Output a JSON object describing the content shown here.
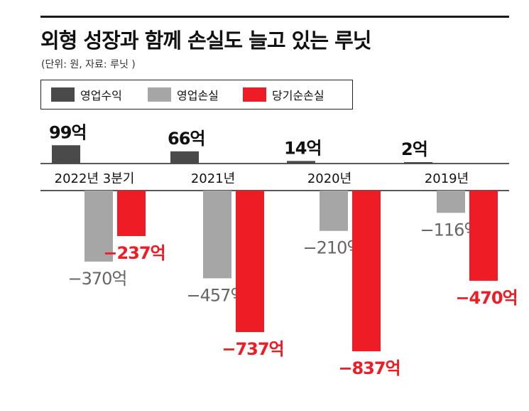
{
  "header": {
    "title": "외형 성장과 함께 손실도 늘고 있는 루닛",
    "subtitle": "(단위: 원, 자료: 루닛 )"
  },
  "legend": [
    {
      "label": "영업수익",
      "color": "#4a4a4a"
    },
    {
      "label": "영업손실",
      "color": "#a6a6a6"
    },
    {
      "label": "당기순손실",
      "color": "#ee1c25"
    }
  ],
  "chart_data": {
    "type": "bar",
    "title": "외형 성장과 함께 손실도 늘고 있는 루닛",
    "unit": "억",
    "categories": [
      "2022년 3분기",
      "2021년",
      "2020년",
      "2019년"
    ],
    "series": [
      {
        "name": "영업수익",
        "color": "#4a4a4a",
        "values": [
          99,
          66,
          14,
          2
        ],
        "labels": [
          "99억",
          "66억",
          "14억",
          "2억"
        ]
      },
      {
        "name": "영업손실",
        "color": "#a6a6a6",
        "values": [
          -370,
          -457,
          -210,
          -116
        ],
        "labels": [
          "−370억",
          "−457억",
          "−210억",
          "−116억"
        ]
      },
      {
        "name": "당기순손실",
        "color": "#ee1c25",
        "values": [
          -237,
          -737,
          -837,
          -470
        ],
        "labels": [
          "−237억",
          "−737억",
          "−837억",
          "−470억"
        ]
      }
    ],
    "legend_position": "top-left",
    "grid": false
  }
}
